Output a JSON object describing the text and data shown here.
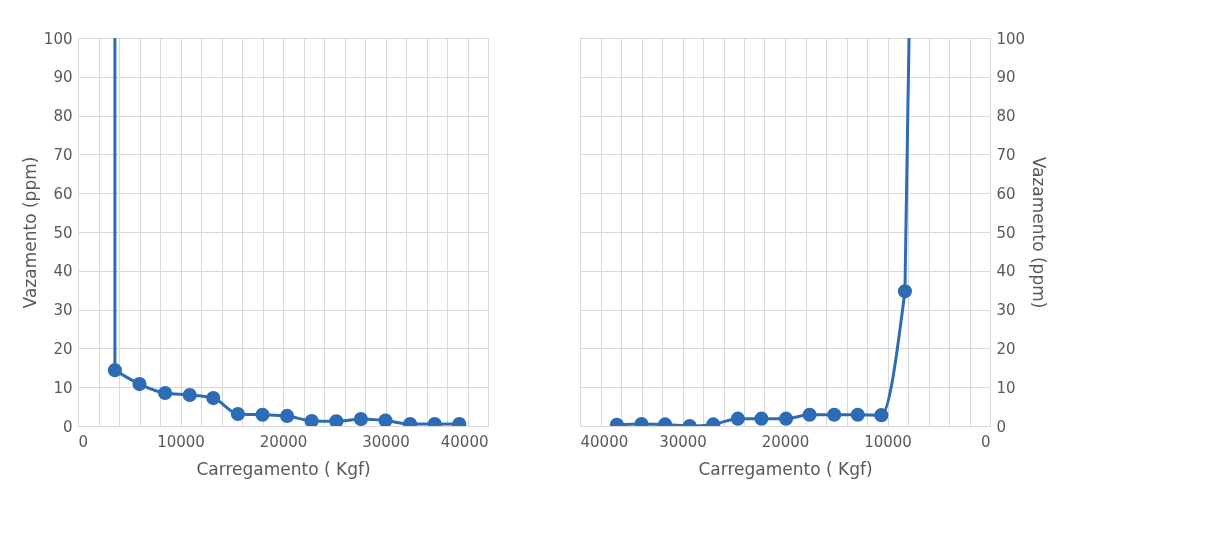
{
  "chart_data": [
    {
      "type": "line",
      "xlabel": "Carregamento ( Kgf)",
      "ylabel": "Vazamento (ppm)",
      "xlim": [
        0,
        40000
      ],
      "xticks": [
        0,
        {
          "value": 2000,
          "label": null
        },
        {
          "value": 4000,
          "label": null
        },
        {
          "value": 6000,
          "label": null
        },
        {
          "value": 8000,
          "label": null
        },
        10000,
        {
          "value": 12000,
          "label": null
        },
        {
          "value": 14000,
          "label": null
        },
        {
          "value": 16000,
          "label": null
        },
        {
          "value": 18000,
          "label": null
        },
        20000,
        {
          "value": 22000,
          "label": null
        },
        {
          "value": 24000,
          "label": null
        },
        {
          "value": 26000,
          "label": null
        },
        {
          "value": 28000,
          "label": null
        },
        30000,
        {
          "value": 32000,
          "label": null
        },
        {
          "value": 34000,
          "label": null
        },
        {
          "value": 36000,
          "label": null
        },
        {
          "value": 38000,
          "label": null
        },
        40000
      ],
      "ylim": [
        0,
        100
      ],
      "yticks": [
        0,
        10,
        20,
        30,
        40,
        50,
        60,
        70,
        80,
        90,
        100
      ],
      "grid": true,
      "marker": "circle",
      "line_style": "solid",
      "series": [
        {
          "color": "#2e6bb5",
          "x": [
            3600,
            6000,
            8500,
            10900,
            13200,
            15600,
            18000,
            20400,
            22800,
            25200,
            27600,
            30000,
            32400,
            34800,
            37200
          ],
          "values": [
            14.4,
            10.8,
            8.5,
            8.0,
            7.2,
            3.1,
            2.9,
            2.6,
            1.3,
            1.2,
            1.8,
            1.4,
            0.5,
            0.5,
            0.5
          ]
        },
        {
          "color": "#2e6bb5",
          "marker": "none",
          "x": [
            3600,
            3600
          ],
          "values": [
            14.4,
            100
          ]
        }
      ]
    },
    {
      "type": "line",
      "xlabel": "Carregamento ( Kgf)",
      "y2label": "Vazamento (ppm)",
      "xlim": [
        40000,
        0
      ],
      "xticks": [
        0,
        {
          "value": 2000,
          "label": null
        },
        {
          "value": 4000,
          "label": null
        },
        {
          "value": 6000,
          "label": null
        },
        {
          "value": 8000,
          "label": null
        },
        10000,
        {
          "value": 12000,
          "label": null
        },
        {
          "value": 14000,
          "label": null
        },
        {
          "value": 16000,
          "label": null
        },
        {
          "value": 18000,
          "label": null
        },
        20000,
        {
          "value": 22000,
          "label": null
        },
        {
          "value": 24000,
          "label": null
        },
        {
          "value": 26000,
          "label": null
        },
        {
          "value": 28000,
          "label": null
        },
        30000,
        {
          "value": 32000,
          "label": null
        },
        {
          "value": 34000,
          "label": null
        },
        {
          "value": 36000,
          "label": null
        },
        {
          "value": 38000,
          "label": null
        },
        40000
      ],
      "y2lim": [
        0,
        100
      ],
      "y2ticks": [
        0,
        10,
        20,
        30,
        40,
        50,
        60,
        70,
        80,
        90,
        100
      ],
      "grid": true,
      "marker": "circle",
      "line_style": "solid",
      "series": [
        {
          "color": "#2e6bb5",
          "axis": "y2",
          "x": [
            36400,
            34000,
            31700,
            29300,
            27000,
            24600,
            22300,
            19900,
            17600,
            15200,
            12900,
            10600,
            8300
          ],
          "values": [
            0.3,
            0.5,
            0.4,
            0.0,
            0.4,
            1.9,
            1.9,
            1.9,
            2.9,
            2.9,
            2.9,
            2.8,
            34.7
          ]
        },
        {
          "color": "#2e6bb5",
          "axis": "y2",
          "marker": "none",
          "x": [
            8300,
            7900
          ],
          "values": [
            34.7,
            100
          ]
        }
      ]
    }
  ]
}
